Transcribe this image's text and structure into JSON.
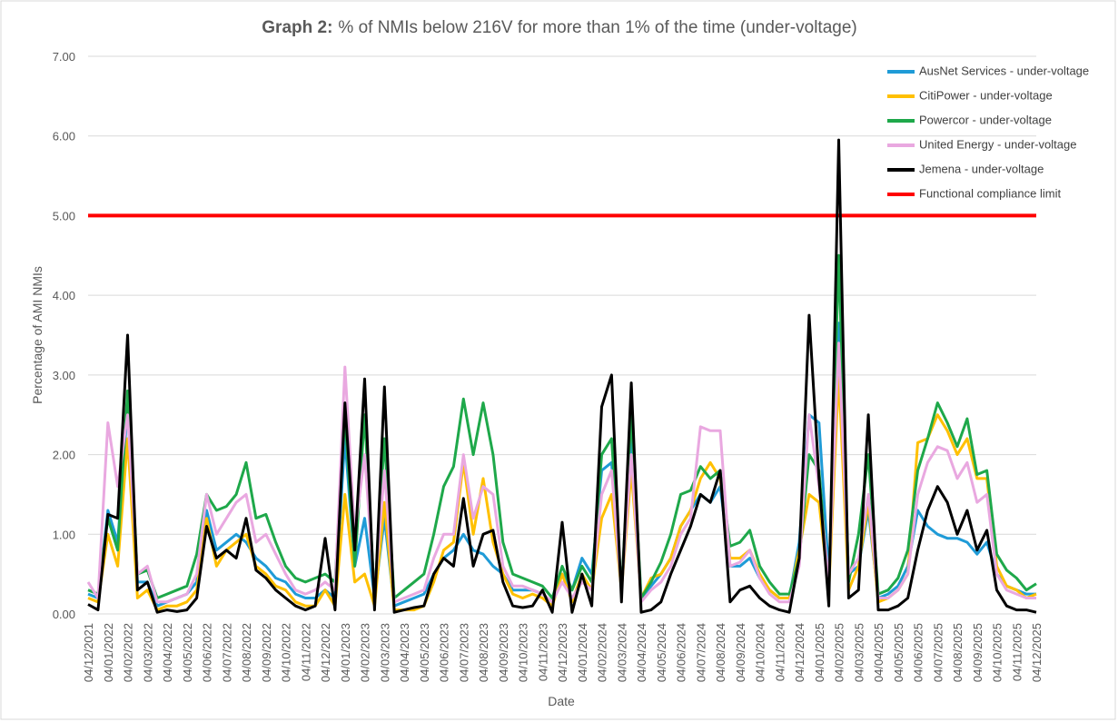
{
  "chart_data": {
    "type": "line",
    "title_label": "Graph 2:",
    "title": "% of NMIs below 216V for more than 1% of the time (under-voltage)",
    "x_label": "Date",
    "y_label": "Percentage of AMI NMIs",
    "categories": [
      "04/12/2021",
      null,
      "04/01/2022",
      null,
      "04/02/2022",
      null,
      "04/03/2022",
      null,
      "04/04/2022",
      null,
      "04/05/2022",
      null,
      "04/06/2022",
      null,
      "04/07/2022",
      null,
      "04/08/2022",
      null,
      "04/09/2022",
      null,
      "04/10/2022",
      null,
      "04/11/2022",
      null,
      "04/12/2022",
      null,
      "04/01/2023",
      null,
      "04/02/2023",
      null,
      "04/03/2023",
      null,
      "04/04/2023",
      null,
      "04/05/2023",
      null,
      "04/06/2023",
      null,
      "04/07/2023",
      null,
      "04/08/2023",
      null,
      "04/09/2023",
      null,
      "04/10/2023",
      null,
      "04/11/2023",
      null,
      "04/12/2023",
      null,
      "04/01/2024",
      null,
      "04/02/2024",
      null,
      "04/03/2024",
      null,
      "04/04/2024",
      null,
      "04/05/2024",
      null,
      "04/06/2024",
      null,
      "04/07/2024",
      null,
      "04/08/2024",
      null,
      "04/09/2024",
      null,
      "04/10/2024",
      null,
      "04/11/2024",
      null,
      "04/12/2024",
      null,
      "04/01/2025",
      null,
      "04/02/2025",
      null,
      "04/03/2025",
      null,
      "04/04/2025",
      null,
      "04/05/2025",
      null,
      "04/06/2025",
      null,
      "04/07/2025",
      null,
      "04/08/2025",
      null,
      "04/09/2025",
      null,
      "04/10/2025",
      null,
      "04/11/2025",
      null,
      "04/12/2025"
    ],
    "series": [
      {
        "name": "AusNet Services - under-voltage",
        "color": "#1f9bd7",
        "values": [
          0.25,
          0.2,
          1.3,
          0.9,
          2.6,
          0.4,
          0.4,
          0.1,
          0.15,
          0.2,
          0.25,
          0.4,
          1.3,
          0.8,
          0.9,
          1.0,
          0.9,
          0.7,
          0.6,
          0.45,
          0.4,
          0.25,
          0.2,
          0.2,
          0.3,
          0.2,
          2.2,
          0.6,
          1.2,
          0.2,
          1.2,
          0.1,
          0.15,
          0.2,
          0.25,
          0.5,
          0.7,
          0.8,
          1.0,
          0.8,
          0.75,
          0.6,
          0.5,
          0.3,
          0.3,
          0.3,
          0.25,
          0.15,
          0.5,
          0.3,
          0.7,
          0.5,
          1.8,
          1.9,
          0.3,
          2.2,
          0.2,
          0.35,
          0.5,
          0.7,
          1.1,
          1.3,
          1.5,
          1.4,
          1.6,
          0.6,
          0.6,
          0.7,
          0.45,
          0.3,
          0.2,
          0.2,
          0.9,
          2.5,
          2.4,
          0.5,
          3.65,
          0.5,
          0.6,
          1.3,
          0.2,
          0.25,
          0.35,
          0.6,
          1.3,
          1.1,
          1.0,
          0.95,
          0.95,
          0.9,
          0.75,
          0.9,
          0.5,
          0.35,
          0.3,
          0.25,
          0.25
        ]
      },
      {
        "name": "CitiPower - under-voltage",
        "color": "#ffc000",
        "values": [
          0.2,
          0.15,
          1.0,
          0.6,
          2.2,
          0.2,
          0.3,
          0.05,
          0.1,
          0.1,
          0.15,
          0.3,
          1.2,
          0.6,
          0.8,
          0.9,
          1.0,
          0.6,
          0.5,
          0.35,
          0.3,
          0.15,
          0.1,
          0.1,
          0.3,
          0.1,
          1.5,
          0.4,
          0.5,
          0.1,
          1.4,
          0.05,
          0.05,
          0.05,
          0.1,
          0.4,
          0.8,
          0.9,
          1.9,
          1.0,
          1.7,
          0.9,
          0.5,
          0.25,
          0.2,
          0.25,
          0.2,
          0.1,
          0.5,
          0.15,
          0.5,
          0.3,
          1.2,
          1.5,
          0.3,
          1.8,
          0.2,
          0.45,
          0.5,
          0.7,
          1.1,
          1.3,
          1.7,
          1.9,
          1.7,
          0.7,
          0.7,
          0.8,
          0.5,
          0.3,
          0.2,
          0.2,
          0.8,
          1.5,
          1.4,
          0.3,
          3.0,
          0.3,
          0.6,
          1.4,
          0.15,
          0.2,
          0.3,
          0.5,
          2.15,
          2.2,
          2.5,
          2.3,
          2.0,
          2.2,
          1.7,
          1.7,
          0.6,
          0.35,
          0.3,
          0.2,
          0.25
        ]
      },
      {
        "name": "Powercor - under-voltage",
        "color": "#1ea84a",
        "values": [
          0.3,
          0.25,
          1.2,
          0.8,
          2.8,
          0.5,
          0.55,
          0.2,
          0.25,
          0.3,
          0.35,
          0.75,
          1.5,
          1.3,
          1.35,
          1.5,
          1.9,
          1.2,
          1.25,
          0.9,
          0.6,
          0.45,
          0.4,
          0.45,
          0.5,
          0.4,
          2.5,
          0.6,
          2.5,
          0.2,
          2.2,
          0.2,
          0.3,
          0.4,
          0.5,
          1.0,
          1.6,
          1.85,
          2.7,
          2.0,
          2.65,
          2.0,
          0.9,
          0.5,
          0.45,
          0.4,
          0.35,
          0.2,
          0.6,
          0.3,
          0.6,
          0.4,
          2.0,
          2.2,
          0.3,
          2.5,
          0.2,
          0.4,
          0.65,
          1.0,
          1.5,
          1.55,
          1.85,
          1.7,
          1.8,
          0.85,
          0.9,
          1.05,
          0.6,
          0.4,
          0.25,
          0.25,
          0.7,
          2.0,
          1.8,
          0.3,
          4.5,
          0.4,
          1.0,
          2.0,
          0.25,
          0.3,
          0.45,
          0.8,
          1.8,
          2.2,
          2.65,
          2.4,
          2.1,
          2.45,
          1.75,
          1.8,
          0.75,
          0.55,
          0.45,
          0.3,
          0.38
        ]
      },
      {
        "name": "United Energy - under-voltage",
        "color": "#e9a8e0",
        "values": [
          0.4,
          0.2,
          2.4,
          1.6,
          2.5,
          0.5,
          0.6,
          0.15,
          0.15,
          0.2,
          0.25,
          0.5,
          1.5,
          1.0,
          1.2,
          1.4,
          1.5,
          0.9,
          1.0,
          0.75,
          0.5,
          0.3,
          0.25,
          0.3,
          0.4,
          0.3,
          3.1,
          1.0,
          2.0,
          0.25,
          1.8,
          0.15,
          0.2,
          0.25,
          0.3,
          0.7,
          1.0,
          1.0,
          2.0,
          1.2,
          1.6,
          1.5,
          0.6,
          0.35,
          0.35,
          0.3,
          0.25,
          0.15,
          0.4,
          0.2,
          0.4,
          0.3,
          1.5,
          1.8,
          0.3,
          2.0,
          0.15,
          0.3,
          0.4,
          0.6,
          1.0,
          1.2,
          2.35,
          2.3,
          2.3,
          0.6,
          0.65,
          0.8,
          0.45,
          0.25,
          0.15,
          0.15,
          0.6,
          2.5,
          1.6,
          0.4,
          3.4,
          0.5,
          0.7,
          1.5,
          0.2,
          0.2,
          0.3,
          0.5,
          1.5,
          1.9,
          2.1,
          2.05,
          1.7,
          1.9,
          1.4,
          1.5,
          0.5,
          0.3,
          0.25,
          0.2,
          0.2
        ]
      },
      {
        "name": "Jemena - under-voltage",
        "color": "#000000",
        "values": [
          0.12,
          0.05,
          1.25,
          1.2,
          3.5,
          0.3,
          0.4,
          0.02,
          0.05,
          0.03,
          0.05,
          0.2,
          1.1,
          0.7,
          0.8,
          0.7,
          1.2,
          0.55,
          0.45,
          0.3,
          0.2,
          0.1,
          0.05,
          0.1,
          0.95,
          0.05,
          2.65,
          0.8,
          2.95,
          0.05,
          2.85,
          0.02,
          0.05,
          0.08,
          0.1,
          0.5,
          0.7,
          0.6,
          1.45,
          0.6,
          1.0,
          1.05,
          0.4,
          0.1,
          0.08,
          0.1,
          0.3,
          0.02,
          1.15,
          0.02,
          0.5,
          0.1,
          2.6,
          3.0,
          0.15,
          2.9,
          0.02,
          0.05,
          0.15,
          0.5,
          0.8,
          1.1,
          1.5,
          1.4,
          1.8,
          0.15,
          0.3,
          0.35,
          0.2,
          0.1,
          0.05,
          0.02,
          0.7,
          3.75,
          1.7,
          0.1,
          5.95,
          0.2,
          0.3,
          2.5,
          0.05,
          0.05,
          0.1,
          0.2,
          0.8,
          1.3,
          1.6,
          1.4,
          1.0,
          1.3,
          0.8,
          1.05,
          0.3,
          0.1,
          0.05,
          0.05,
          0.02
        ]
      }
    ],
    "reference_line": {
      "name": "Functional compliance limit",
      "color": "#ff0000",
      "value": 5
    },
    "ylim": [
      0,
      7
    ],
    "yticks": [
      {
        "value": 0,
        "label": "0.00"
      },
      {
        "value": 1,
        "label": "1.00"
      },
      {
        "value": 2,
        "label": "2.00"
      },
      {
        "value": 3,
        "label": "3.00"
      },
      {
        "value": 4,
        "label": "4.00"
      },
      {
        "value": 5,
        "label": "5.00"
      },
      {
        "value": 6,
        "label": "6.00"
      },
      {
        "value": 7,
        "label": "7.00"
      }
    ],
    "grid": true,
    "legend_position": "top-right"
  }
}
